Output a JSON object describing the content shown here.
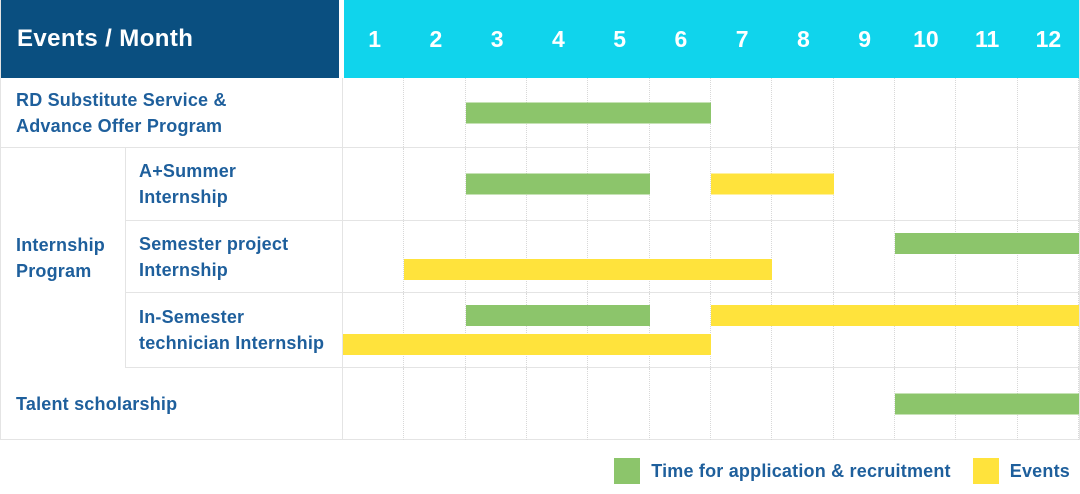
{
  "header": {
    "title": "Events / Month",
    "months": [
      "1",
      "2",
      "3",
      "4",
      "5",
      "6",
      "7",
      "8",
      "9",
      "10",
      "11",
      "12"
    ]
  },
  "colors": {
    "header_bg": "#0a4f80",
    "months_bg": "#10d4ec",
    "application": "#8cc56b",
    "events": "#ffe33c",
    "label_text": "#1e5f9c"
  },
  "legend": {
    "items": [
      {
        "kind": "application",
        "label": "Time for application & recruitment"
      },
      {
        "kind": "events",
        "label": "Events"
      }
    ]
  },
  "chart_data": {
    "type": "gantt",
    "unit": "month",
    "x_range": [
      1,
      12
    ],
    "title": "Events / Month",
    "bar_kinds": {
      "application": "Time for application & recruitment",
      "events": "Events"
    },
    "rows": [
      {
        "group": "",
        "group_lines": [],
        "label": "RD Substitute Service & Advance Offer Program",
        "label_lines": [
          "RD Substitute Service &",
          "Advance Offer Program"
        ],
        "height": 70,
        "lanes": [
          {
            "position": "center",
            "bars": [
              {
                "kind": "application",
                "start_month": 3,
                "end_month": 6
              }
            ]
          }
        ]
      },
      {
        "group": "Internship Program",
        "group_lines": [
          "Internship",
          "Program"
        ],
        "label": "A+Summer Internship",
        "label_lines": [
          "A+Summer",
          "Internship"
        ],
        "height": 73,
        "lanes": [
          {
            "position": "center",
            "bars": [
              {
                "kind": "application",
                "start_month": 3,
                "end_month": 5
              },
              {
                "kind": "events",
                "start_month": 7,
                "end_month": 8
              }
            ]
          }
        ]
      },
      {
        "group": "Internship Program",
        "group_lines": [
          "Internship",
          "Program"
        ],
        "label": "Semester project Internship",
        "label_lines": [
          "Semester project",
          "Internship"
        ],
        "height": 72,
        "lanes": [
          {
            "position": "top",
            "bars": [
              {
                "kind": "application",
                "start_month": 10,
                "end_month": 12
              }
            ]
          },
          {
            "position": "bottom",
            "bars": [
              {
                "kind": "events",
                "start_month": 2,
                "end_month": 7
              }
            ]
          }
        ]
      },
      {
        "group": "Internship Program",
        "group_lines": [
          "Internship",
          "Program"
        ],
        "label": "In-Semester technician Internship",
        "label_lines": [
          "In-Semester",
          "technician Internship"
        ],
        "height": 75,
        "lanes": [
          {
            "position": "top",
            "bars": [
              {
                "kind": "application",
                "start_month": 3,
                "end_month": 5
              },
              {
                "kind": "events",
                "start_month": 7,
                "end_month": 12
              }
            ]
          },
          {
            "position": "bottom",
            "bars": [
              {
                "kind": "events",
                "start_month": 1,
                "end_month": 6
              }
            ]
          }
        ]
      },
      {
        "group": "",
        "group_lines": [],
        "label": "Talent scholarship",
        "label_lines": [
          "Talent scholarship"
        ],
        "height": 72,
        "lanes": [
          {
            "position": "center",
            "bars": [
              {
                "kind": "application",
                "start_month": 10,
                "end_month": 12
              }
            ]
          }
        ]
      }
    ]
  }
}
